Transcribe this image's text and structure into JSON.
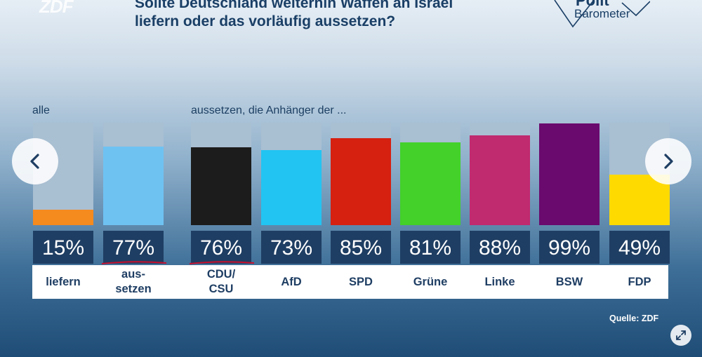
{
  "header": {
    "logo": "ZDF",
    "title_line1": "Sollte Deutschland weiterhin Waffen an Israel",
    "title_line2": "liefern oder das vorläufig aussetzen?",
    "brand_line1": "Polit",
    "brand_line2": "Barometer"
  },
  "labels": {
    "all": "alle",
    "supporters": "aussetzen, die Anhänger der ..."
  },
  "source": "Quelle: ZDF",
  "icons": {
    "prev": "chevron-left-icon",
    "next": "chevron-right-icon",
    "expand": "expand-icon"
  },
  "chart_data": {
    "type": "bar",
    "title": "Sollte Deutschland weiterhin Waffen an Israel liefern oder das vorläufig aussetzen?",
    "ylim": [
      0,
      100
    ],
    "categories": [
      "liefern",
      "aus-setzen",
      "CDU/CSU",
      "AfD",
      "SPD",
      "Grüne",
      "Linke",
      "BSW",
      "FDP"
    ],
    "category_lines": [
      [
        "liefern"
      ],
      [
        "aus-",
        "setzen"
      ],
      [
        "CDU/",
        "CSU"
      ],
      [
        "AfD"
      ],
      [
        "SPD"
      ],
      [
        "Grüne"
      ],
      [
        "Linke"
      ],
      [
        "BSW"
      ],
      [
        "FDP"
      ]
    ],
    "values": [
      15,
      77,
      76,
      73,
      85,
      81,
      88,
      99,
      49
    ],
    "value_labels": [
      "15%",
      "77%",
      "76%",
      "73%",
      "85%",
      "81%",
      "88%",
      "99%",
      "49%"
    ],
    "colors": [
      "#f58a1f",
      "#6ec2f2",
      "#1c1c1c",
      "#22c4f2",
      "#d62010",
      "#43d12a",
      "#c02a6f",
      "#6a0a6e",
      "#ffda00"
    ],
    "groups": [
      "alle",
      "alle",
      "aussetzen, die Anhänger der ...",
      "aussetzen, die Anhänger der ...",
      "aussetzen, die Anhänger der ...",
      "aussetzen, die Anhänger der ...",
      "aussetzen, die Anhänger der ...",
      "aussetzen, die Anhänger der ...",
      "aussetzen, die Anhänger der ..."
    ],
    "highlight_color": "#c8102e"
  }
}
